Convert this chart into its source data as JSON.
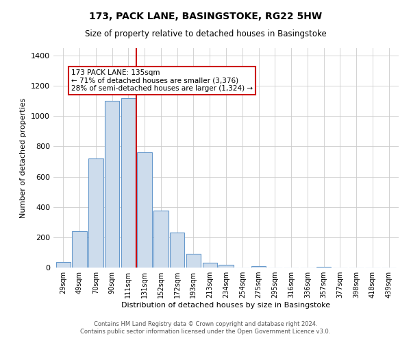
{
  "title": "173, PACK LANE, BASINGSTOKE, RG22 5HW",
  "subtitle": "Size of property relative to detached houses in Basingstoke",
  "xlabel": "Distribution of detached houses by size in Basingstoke",
  "ylabel": "Number of detached properties",
  "bar_labels": [
    "29sqm",
    "49sqm",
    "70sqm",
    "90sqm",
    "111sqm",
    "131sqm",
    "152sqm",
    "172sqm",
    "193sqm",
    "213sqm",
    "234sqm",
    "254sqm",
    "275sqm",
    "295sqm",
    "316sqm",
    "336sqm",
    "357sqm",
    "377sqm",
    "398sqm",
    "418sqm",
    "439sqm"
  ],
  "bar_values": [
    35,
    240,
    720,
    1100,
    1120,
    760,
    375,
    230,
    90,
    30,
    20,
    0,
    10,
    0,
    0,
    0,
    5,
    0,
    0,
    0,
    0
  ],
  "bar_color": "#cddcec",
  "bar_edgecolor": "#6699cc",
  "property_line_color": "#cc0000",
  "annotation_title": "173 PACK LANE: 135sqm",
  "annotation_line1": "← 71% of detached houses are smaller (3,376)",
  "annotation_line2": "28% of semi-detached houses are larger (1,324) →",
  "annotation_box_color": "#ffffff",
  "annotation_box_edgecolor": "#cc0000",
  "ylim": [
    0,
    1450
  ],
  "yticks": [
    0,
    200,
    400,
    600,
    800,
    1000,
    1200,
    1400
  ],
  "footer1": "Contains HM Land Registry data © Crown copyright and database right 2024.",
  "footer2": "Contains public sector information licensed under the Open Government Licence v3.0.",
  "background_color": "#ffffff",
  "grid_color": "#cccccc"
}
